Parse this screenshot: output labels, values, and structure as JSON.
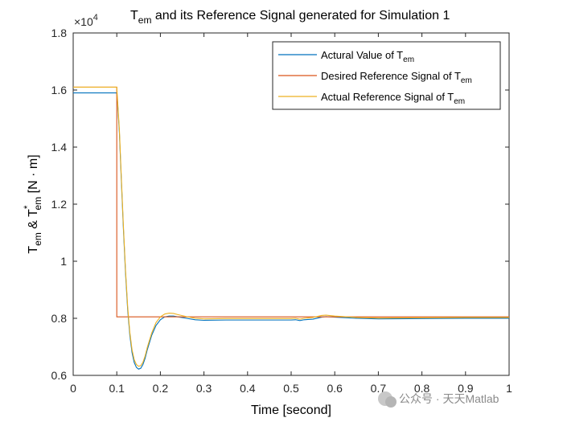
{
  "chart_data": {
    "type": "line",
    "exponent_label": "×10",
    "exponent_power": "4",
    "title": {
      "main": "T",
      "sub": "em",
      "rest": " and its Reference Signal generated for Simulation 1"
    },
    "xlabel": "Time [second]",
    "ylabel": {
      "p1": "T",
      "p1_sub": "em",
      "p2": " & T",
      "p2_sup": "*",
      "p2_sub": "em",
      "p3": " [N · m]"
    },
    "xlim": [
      0,
      1
    ],
    "ylim": [
      0.6,
      1.8
    ],
    "x_ticks": [
      "0",
      "0.1",
      "0.2",
      "0.3",
      "0.4",
      "0.5",
      "0.6",
      "0.7",
      "0.8",
      "0.9",
      "1"
    ],
    "y_ticks": [
      "0.6",
      "0.8",
      "1",
      "1.2",
      "1.4",
      "1.6",
      "1.8"
    ],
    "grid": false,
    "legend_position": "top-right",
    "series": [
      {
        "name": "Actural Value of T",
        "name_sub": "em",
        "color": "#0072BD",
        "points": [
          [
            0,
            1.59
          ],
          [
            0.1,
            1.59
          ],
          [
            0.102,
            1.55
          ],
          [
            0.106,
            1.45
          ],
          [
            0.11,
            1.3
          ],
          [
            0.115,
            1.12
          ],
          [
            0.12,
            0.96
          ],
          [
            0.125,
            0.83
          ],
          [
            0.13,
            0.74
          ],
          [
            0.135,
            0.68
          ],
          [
            0.14,
            0.645
          ],
          [
            0.145,
            0.628
          ],
          [
            0.15,
            0.622
          ],
          [
            0.155,
            0.625
          ],
          [
            0.16,
            0.638
          ],
          [
            0.165,
            0.66
          ],
          [
            0.17,
            0.69
          ],
          [
            0.18,
            0.74
          ],
          [
            0.19,
            0.775
          ],
          [
            0.2,
            0.795
          ],
          [
            0.21,
            0.805
          ],
          [
            0.22,
            0.808
          ],
          [
            0.23,
            0.808
          ],
          [
            0.24,
            0.805
          ],
          [
            0.26,
            0.8
          ],
          [
            0.28,
            0.795
          ],
          [
            0.3,
            0.793
          ],
          [
            0.35,
            0.794
          ],
          [
            0.4,
            0.794
          ],
          [
            0.45,
            0.794
          ],
          [
            0.5,
            0.794
          ],
          [
            0.51,
            0.795
          ],
          [
            0.52,
            0.792
          ],
          [
            0.53,
            0.795
          ],
          [
            0.55,
            0.797
          ],
          [
            0.57,
            0.804
          ],
          [
            0.58,
            0.806
          ],
          [
            0.6,
            0.804
          ],
          [
            0.65,
            0.8
          ],
          [
            0.7,
            0.798
          ],
          [
            0.8,
            0.799
          ],
          [
            0.9,
            0.8
          ],
          [
            1.0,
            0.8
          ]
        ]
      },
      {
        "name": "Desired Reference Signal of T",
        "name_sub": "em",
        "color": "#D95319",
        "points": [
          [
            0,
            1.61
          ],
          [
            0.1,
            1.61
          ],
          [
            0.1,
            0.805
          ],
          [
            0.35,
            0.805
          ],
          [
            0.5,
            0.805
          ],
          [
            0.6,
            0.805
          ],
          [
            0.8,
            0.805
          ],
          [
            1.0,
            0.805
          ]
        ]
      },
      {
        "name": "Actual Reference Signal of T",
        "name_sub": "em",
        "color": "#EDB120",
        "points": [
          [
            0,
            1.61
          ],
          [
            0.1,
            1.61
          ],
          [
            0.102,
            1.56
          ],
          [
            0.106,
            1.46
          ],
          [
            0.11,
            1.31
          ],
          [
            0.115,
            1.13
          ],
          [
            0.12,
            0.97
          ],
          [
            0.125,
            0.84
          ],
          [
            0.13,
            0.75
          ],
          [
            0.135,
            0.69
          ],
          [
            0.14,
            0.655
          ],
          [
            0.145,
            0.638
          ],
          [
            0.15,
            0.632
          ],
          [
            0.155,
            0.634
          ],
          [
            0.16,
            0.646
          ],
          [
            0.165,
            0.668
          ],
          [
            0.17,
            0.698
          ],
          [
            0.18,
            0.748
          ],
          [
            0.19,
            0.785
          ],
          [
            0.2,
            0.805
          ],
          [
            0.21,
            0.815
          ],
          [
            0.22,
            0.818
          ],
          [
            0.23,
            0.817
          ],
          [
            0.24,
            0.813
          ],
          [
            0.26,
            0.806
          ],
          [
            0.28,
            0.8
          ],
          [
            0.3,
            0.798
          ],
          [
            0.35,
            0.799
          ],
          [
            0.4,
            0.799
          ],
          [
            0.45,
            0.799
          ],
          [
            0.5,
            0.799
          ],
          [
            0.51,
            0.8
          ],
          [
            0.52,
            0.797
          ],
          [
            0.53,
            0.8
          ],
          [
            0.55,
            0.803
          ],
          [
            0.57,
            0.81
          ],
          [
            0.58,
            0.811
          ],
          [
            0.6,
            0.808
          ],
          [
            0.65,
            0.803
          ],
          [
            0.7,
            0.801
          ],
          [
            0.8,
            0.802
          ],
          [
            0.9,
            0.803
          ],
          [
            1.0,
            0.803
          ]
        ]
      }
    ]
  },
  "watermark": "公众号 · 天天Matlab"
}
